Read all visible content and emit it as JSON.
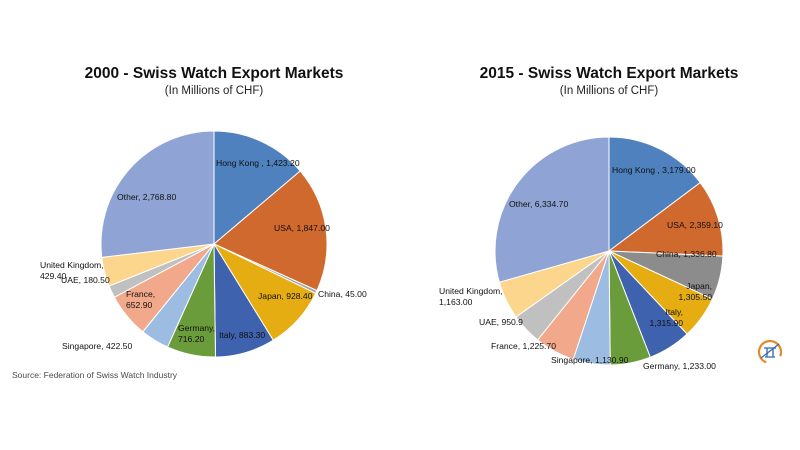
{
  "source": "Source: Federation of Swiss Watch Industry",
  "chart_data": [
    {
      "type": "pie",
      "title": "2000 - Swiss Watch Export Markets",
      "subtitle": "(In Millions of CHF)",
      "slices": [
        {
          "name": "Hong Kong",
          "value": 1423.2,
          "label": "Hong Kong , 1,423.20",
          "color": "#4e81bd"
        },
        {
          "name": "USA",
          "value": 1847.0,
          "label": "USA, 1,847.00",
          "color": "#d0692e"
        },
        {
          "name": "China",
          "value": 45.0,
          "label": "China, 45.00",
          "color": "#a5a5a5"
        },
        {
          "name": "Japan",
          "value": 928.4,
          "label": "Japan, 928.40",
          "color": "#e5ad12"
        },
        {
          "name": "Italy",
          "value": 883.3,
          "label": "Italy, 883.30",
          "color": "#3e62ad"
        },
        {
          "name": "Germany",
          "value": 716.2,
          "label": "Germany, 716.20",
          "color": "#6a9c3b"
        },
        {
          "name": "Singapore",
          "value": 422.5,
          "label": "Singapore, 422.50",
          "color": "#9cbce1"
        },
        {
          "name": "France",
          "value": 652.9,
          "label": "France, 652.90",
          "color": "#f2a88a"
        },
        {
          "name": "UAE",
          "value": 180.5,
          "label": "UAE, 180.50",
          "color": "#c0c0c0"
        },
        {
          "name": "United Kingdom",
          "value": 429.4,
          "label": "United Kingdom, 429.40",
          "color": "#fdd68d"
        },
        {
          "name": "Other",
          "value": 2768.8,
          "label": "Other, 2,768.80",
          "color": "#8fa4d4"
        }
      ]
    },
    {
      "type": "pie",
      "title": "2015 - Swiss Watch Export Markets",
      "subtitle": "(In Millions of CHF)",
      "slices": [
        {
          "name": "Hong Kong",
          "value": 3179.0,
          "label": "Hong Kong , 3,179.00",
          "color": "#4e81bd"
        },
        {
          "name": "USA",
          "value": 2359.1,
          "label": "USA, 2,359.10",
          "color": "#d0692e"
        },
        {
          "name": "China",
          "value": 1336.8,
          "label": "China, 1,336.80",
          "color": "#8c8c8c"
        },
        {
          "name": "Japan",
          "value": 1305.5,
          "label": "Japan, 1,305.50",
          "color": "#e5ad12"
        },
        {
          "name": "Italy",
          "value": 1315.9,
          "label": "Italy, 1,315.90",
          "color": "#3e62ad"
        },
        {
          "name": "Germany",
          "value": 1233.0,
          "label": "Germany, 1,233.00",
          "color": "#6a9c3b"
        },
        {
          "name": "Singapore",
          "value": 1130.9,
          "label": "Singapore, 1,130.90",
          "color": "#9cbce1"
        },
        {
          "name": "France",
          "value": 1225.7,
          "label": "France, 1,225.70",
          "color": "#f2a88a"
        },
        {
          "name": "UAE",
          "value": 950.9,
          "label": "UAE, 950.9",
          "color": "#c0c0c0"
        },
        {
          "name": "United Kingdom",
          "value": 1163.0,
          "label": "United Kingdom, 1,163.00",
          "color": "#fdd68d"
        },
        {
          "name": "Other",
          "value": 6334.7,
          "label": "Other, 6,334.70",
          "color": "#8fa4d4"
        }
      ]
    }
  ]
}
